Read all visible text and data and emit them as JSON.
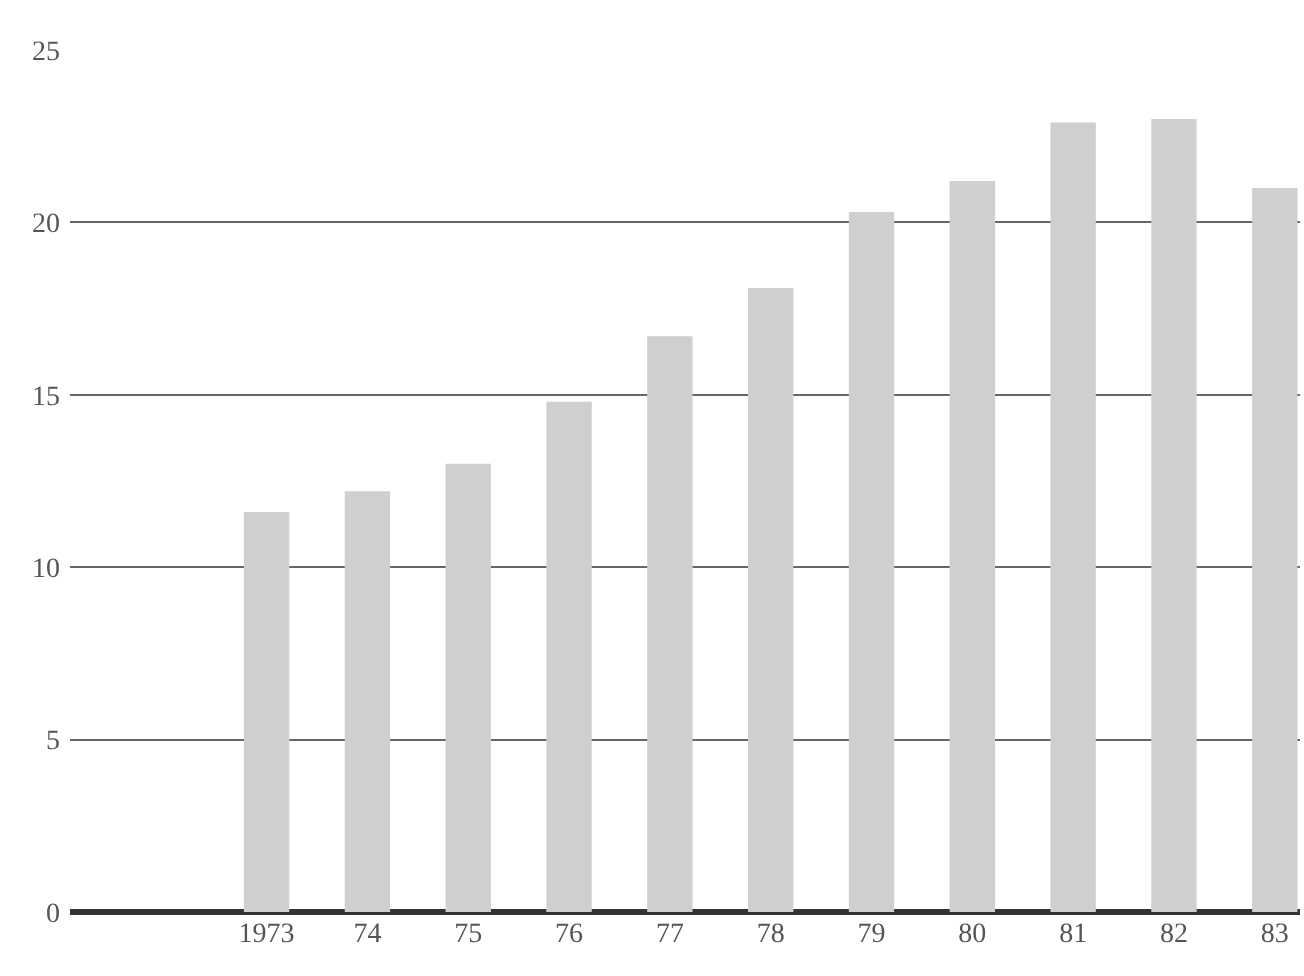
{
  "chart_data": {
    "type": "bar",
    "categories": [
      "1973",
      "74",
      "75",
      "76",
      "77",
      "78",
      "79",
      "80",
      "81",
      "82",
      "83"
    ],
    "values": [
      11.6,
      12.2,
      13.0,
      14.8,
      16.7,
      18.1,
      20.3,
      21.2,
      22.9,
      23.0,
      21.0
    ],
    "color": "#cfcfcf",
    "ylim": [
      0,
      25
    ],
    "yticks": [
      0,
      5,
      10,
      15,
      20,
      25
    ],
    "grid": "y",
    "legend": false
  }
}
